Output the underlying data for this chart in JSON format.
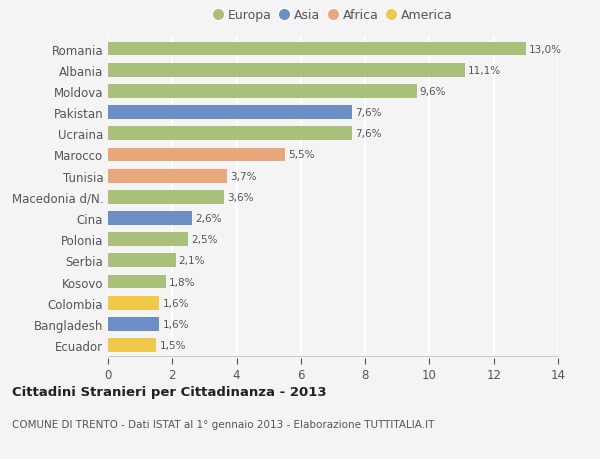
{
  "categories": [
    "Romania",
    "Albania",
    "Moldova",
    "Pakistan",
    "Ucraina",
    "Marocco",
    "Tunisia",
    "Macedonia d/N.",
    "Cina",
    "Polonia",
    "Serbia",
    "Kosovo",
    "Colombia",
    "Bangladesh",
    "Ecuador"
  ],
  "values": [
    13.0,
    11.1,
    9.6,
    7.6,
    7.6,
    5.5,
    3.7,
    3.6,
    2.6,
    2.5,
    2.1,
    1.8,
    1.6,
    1.6,
    1.5
  ],
  "labels": [
    "13,0%",
    "11,1%",
    "9,6%",
    "7,6%",
    "7,6%",
    "5,5%",
    "3,7%",
    "3,6%",
    "2,6%",
    "2,5%",
    "2,1%",
    "1,8%",
    "1,6%",
    "1,6%",
    "1,5%"
  ],
  "continents": [
    "Europa",
    "Europa",
    "Europa",
    "Asia",
    "Europa",
    "Africa",
    "Africa",
    "Europa",
    "Asia",
    "Europa",
    "Europa",
    "Europa",
    "America",
    "Asia",
    "America"
  ],
  "colors": {
    "Europa": "#a8c07a",
    "Asia": "#6b8fc4",
    "Africa": "#e8a87c",
    "America": "#f0c84a"
  },
  "legend_order": [
    "Europa",
    "Asia",
    "Africa",
    "America"
  ],
  "title": "Cittadini Stranieri per Cittadinanza - 2013",
  "subtitle": "COMUNE DI TRENTO - Dati ISTAT al 1° gennaio 2013 - Elaborazione TUTTITALIA.IT",
  "xlim": [
    0,
    14
  ],
  "xticks": [
    0,
    2,
    4,
    6,
    8,
    10,
    12,
    14
  ],
  "bg_color": "#f4f4f4",
  "grid_color": "#ffffff",
  "bar_height": 0.65
}
